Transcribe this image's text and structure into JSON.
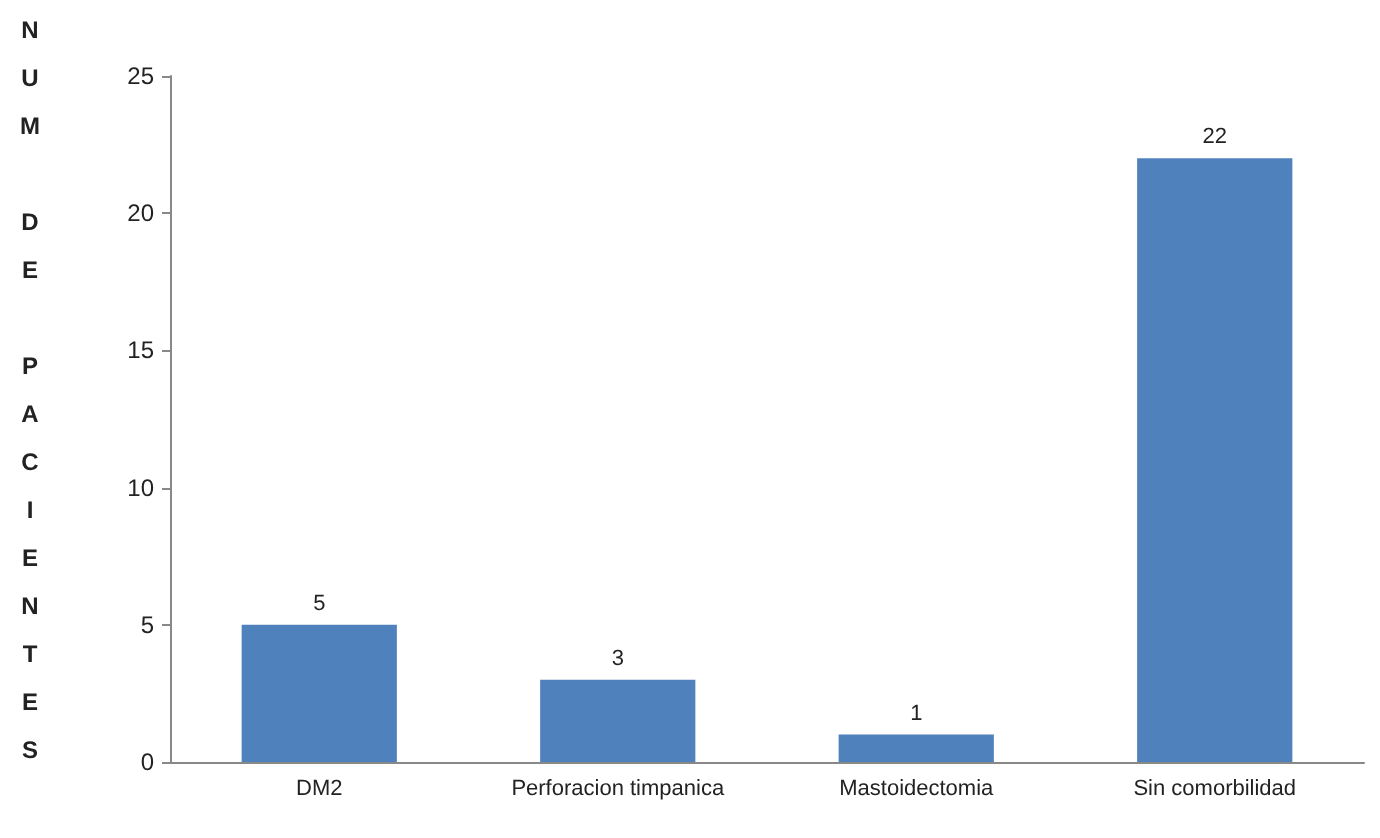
{
  "chart_data": {
    "type": "bar",
    "ylabel": "NUM DE PACIENTES",
    "categories": [
      "DM2",
      "Perforacion timpanica",
      "Mastoidectomia",
      "Sin comorbilidad"
    ],
    "values": [
      5,
      3,
      1,
      22
    ],
    "color": "#4f81bd",
    "ylim": [
      0,
      25
    ],
    "yticks": [
      0,
      5,
      10,
      15,
      20,
      25
    ],
    "grid": false,
    "data_labels": true
  }
}
